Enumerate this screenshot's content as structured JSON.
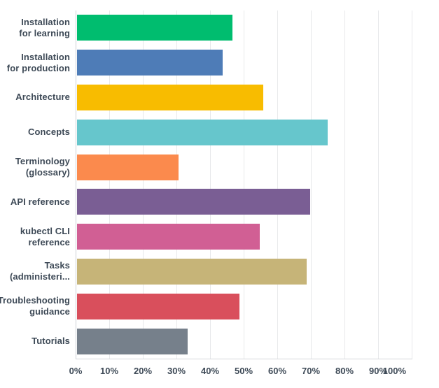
{
  "chart_data": {
    "type": "bar",
    "orientation": "horizontal",
    "title": "",
    "categories": [
      "Installation for learning",
      "Installation for production",
      "Architecture",
      "Concepts",
      "Terminology (glossary)",
      "API reference",
      "kubectl CLI reference",
      "Tasks (administeri...",
      "Troubleshooting guidance",
      "Tutorials"
    ],
    "category_label_lines": [
      [
        "Installation",
        "for learning"
      ],
      [
        "Installation",
        "for production"
      ],
      [
        "Architecture"
      ],
      [
        "Concepts"
      ],
      [
        "Terminology",
        "(glossary)"
      ],
      [
        "API reference"
      ],
      [
        "kubectl CLI",
        "reference"
      ],
      [
        "Tasks",
        "(administeri..."
      ],
      [
        "Troubleshooting",
        "guidance"
      ],
      [
        "Tutorials"
      ]
    ],
    "values": [
      46.3,
      43.4,
      55.4,
      74.5,
      30.2,
      69.4,
      54.4,
      68.3,
      48.3,
      33.0
    ],
    "bar_colors": [
      "#00BD6F",
      "#4E7CB7",
      "#F8BC00",
      "#66C6CC",
      "#FB8A4D",
      "#7A5E94",
      "#D15F94",
      "#C6B478",
      "#D94F5C",
      "#76808B"
    ],
    "x_ticks": [
      "0%",
      "10%",
      "20%",
      "30%",
      "40%",
      "50%",
      "60%",
      "70%",
      "80%",
      "90%",
      "100%"
    ],
    "xlim": [
      0,
      100
    ],
    "grid": "vertical-only",
    "legend": "none",
    "colors": {
      "label_text": "#3E4A57",
      "gridline": "#E8E9EB",
      "axis_line": "#CBD0D4",
      "background": "#FFFFFF"
    }
  }
}
